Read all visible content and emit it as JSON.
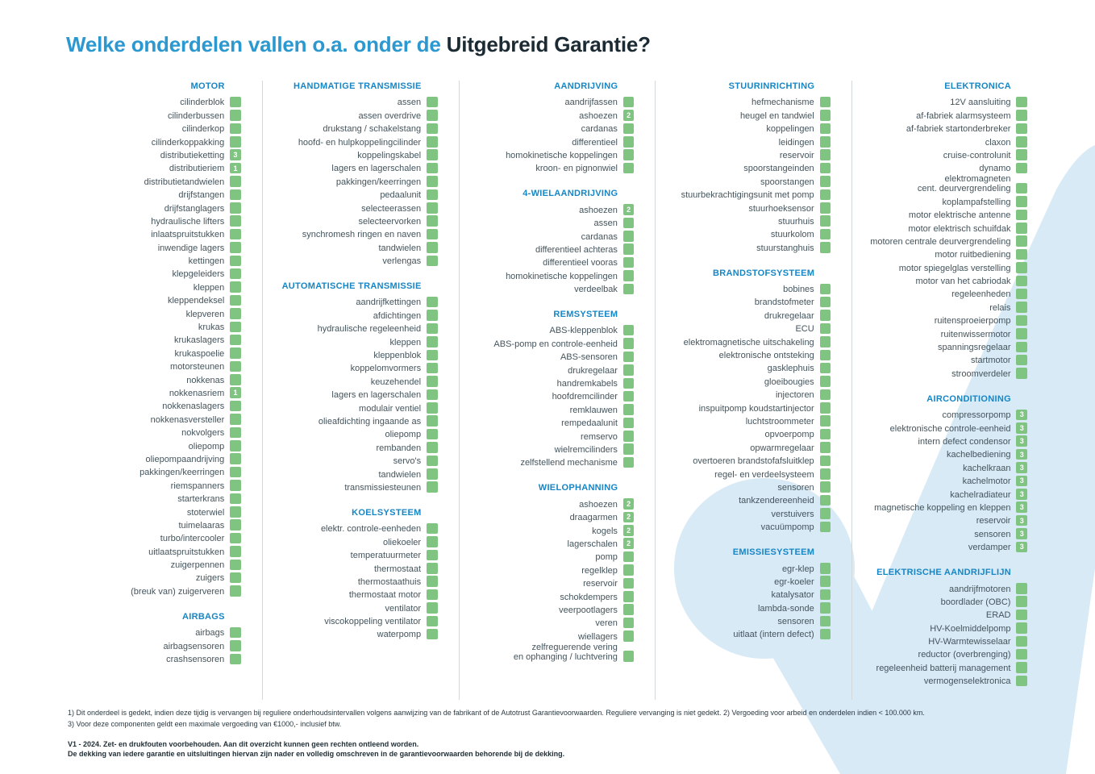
{
  "title": {
    "prefix": "Welke onderdelen vallen o.a. onder de ",
    "highlight": "Uitgebreid Garantie?"
  },
  "colors": {
    "title_blue": "#2b98cf",
    "title_dark": "#1c2b33",
    "section_header": "#1786c4",
    "item_text": "#44545c",
    "checkbox_green": "#80c481",
    "badge_text": "#ffffff",
    "watermark_blue": "#d8eaf6",
    "divider": "#d3d8da"
  },
  "columns": [
    {
      "sections": [
        {
          "title": "MOTOR",
          "items": [
            {
              "label": "cilinderblok"
            },
            {
              "label": "cilinderbussen"
            },
            {
              "label": "cilinderkop"
            },
            {
              "label": "cilinderkoppakking"
            },
            {
              "label": "distributieketting",
              "badge": "3"
            },
            {
              "label": "distributieriem",
              "badge": "1"
            },
            {
              "label": "distributietandwielen"
            },
            {
              "label": "drijfstangen"
            },
            {
              "label": "drijfstanglagers"
            },
            {
              "label": "hydraulische lifters"
            },
            {
              "label": "inlaatspruitstukken"
            },
            {
              "label": "inwendige lagers"
            },
            {
              "label": "kettingen"
            },
            {
              "label": "klepgeleiders"
            },
            {
              "label": "kleppen"
            },
            {
              "label": "kleppendeksel"
            },
            {
              "label": "klepveren"
            },
            {
              "label": "krukas"
            },
            {
              "label": "krukaslagers"
            },
            {
              "label": "krukaspoelie"
            },
            {
              "label": "motorsteunen"
            },
            {
              "label": "nokkenas"
            },
            {
              "label": "nokkenasriem",
              "badge": "1"
            },
            {
              "label": "nokkenaslagers"
            },
            {
              "label": "nokkenasversteller"
            },
            {
              "label": "nokvolgers"
            },
            {
              "label": "oliepomp"
            },
            {
              "label": "oliepompaandrijving"
            },
            {
              "label": "pakkingen/keerringen"
            },
            {
              "label": "riemspanners"
            },
            {
              "label": "starterkrans"
            },
            {
              "label": "stoterwiel"
            },
            {
              "label": "tuimelaaras"
            },
            {
              "label": "turbo/intercooler"
            },
            {
              "label": "uitlaatspruitstukken"
            },
            {
              "label": "zuigerpennen"
            },
            {
              "label": "zuigers"
            },
            {
              "label": "(breuk van) zuigerveren"
            }
          ]
        },
        {
          "title": "AIRBAGS",
          "items": [
            {
              "label": "airbags"
            },
            {
              "label": "airbagsensoren"
            },
            {
              "label": "crashsensoren"
            }
          ]
        }
      ]
    },
    {
      "sections": [
        {
          "title": "HANDMATIGE TRANSMISSIE",
          "items": [
            {
              "label": "assen"
            },
            {
              "label": "assen overdrive"
            },
            {
              "label": "drukstang / schakelstang"
            },
            {
              "label": "hoofd- en hulpkoppelingcilinder"
            },
            {
              "label": "koppelingskabel"
            },
            {
              "label": "lagers en lagerschalen"
            },
            {
              "label": "pakkingen/keerringen"
            },
            {
              "label": "pedaalunit"
            },
            {
              "label": "selecteerassen"
            },
            {
              "label": "selecteervorken"
            },
            {
              "label": "synchromesh ringen en naven"
            },
            {
              "label": "tandwielen"
            },
            {
              "label": "verlengas"
            }
          ]
        },
        {
          "title": "AUTOMATISCHE TRANSMISSIE",
          "items": [
            {
              "label": "aandrijfkettingen"
            },
            {
              "label": "afdichtingen"
            },
            {
              "label": "hydraulische regeleenheid"
            },
            {
              "label": "kleppen"
            },
            {
              "label": "kleppenblok"
            },
            {
              "label": "koppelomvormers"
            },
            {
              "label": "keuzehendel"
            },
            {
              "label": "lagers en lagerschalen"
            },
            {
              "label": "modulair ventiel"
            },
            {
              "label": "olieafdichting ingaande as"
            },
            {
              "label": "oliepomp"
            },
            {
              "label": "rembanden"
            },
            {
              "label": "servo's"
            },
            {
              "label": "tandwielen"
            },
            {
              "label": "transmissiesteunen"
            }
          ]
        },
        {
          "title": "KOELSYSTEEM",
          "items": [
            {
              "label": "elektr. controle-eenheden"
            },
            {
              "label": "oliekoeler"
            },
            {
              "label": "temperatuurmeter"
            },
            {
              "label": "thermostaat"
            },
            {
              "label": "thermostaathuis"
            },
            {
              "label": "thermostaat motor"
            },
            {
              "label": "ventilator"
            },
            {
              "label": "viscokoppeling ventilator"
            },
            {
              "label": "waterpomp"
            }
          ]
        }
      ]
    },
    {
      "sections": [
        {
          "title": "AANDRIJVING",
          "items": [
            {
              "label": "aandrijfassen"
            },
            {
              "label": "ashoezen",
              "badge": "2"
            },
            {
              "label": "cardanas"
            },
            {
              "label": "differentieel"
            },
            {
              "label": "homokinetische koppelingen"
            },
            {
              "label": "kroon- en pignonwiel"
            }
          ]
        },
        {
          "title": "4-WIELAANDRIJVING",
          "items": [
            {
              "label": "ashoezen",
              "badge": "2"
            },
            {
              "label": "assen"
            },
            {
              "label": "cardanas"
            },
            {
              "label": "differentieel achteras"
            },
            {
              "label": "differentieel vooras"
            },
            {
              "label": "homokinetische koppelingen"
            },
            {
              "label": "verdeelbak"
            }
          ]
        },
        {
          "title": "REMSYSTEEM",
          "items": [
            {
              "label": "ABS-kleppenblok"
            },
            {
              "label": "ABS-pomp en controle-eenheid"
            },
            {
              "label": "ABS-sensoren"
            },
            {
              "label": "drukregelaar"
            },
            {
              "label": "handremkabels"
            },
            {
              "label": "hoofdremcilinder"
            },
            {
              "label": "remklauwen"
            },
            {
              "label": "rempedaalunit"
            },
            {
              "label": "remservo"
            },
            {
              "label": "wielremcilinders"
            },
            {
              "label": "zelfstellend mechanisme"
            }
          ]
        },
        {
          "title": "WIELOPHANNING",
          "items": [
            {
              "label": "ashoezen",
              "badge": "2"
            },
            {
              "label": "draagarmen",
              "badge": "2"
            },
            {
              "label": "kogels",
              "badge": "2"
            },
            {
              "label": "lagerschalen",
              "badge": "2"
            },
            {
              "label": "pomp"
            },
            {
              "label": "regelklep"
            },
            {
              "label": "reservoir"
            },
            {
              "label": "schokdempers"
            },
            {
              "label": "veerpootlagers"
            },
            {
              "label": "veren"
            },
            {
              "label": "wiellagers"
            },
            {
              "label": "zelfreguerende vering\nen ophanging / luchtvering"
            }
          ]
        }
      ]
    },
    {
      "sections": [
        {
          "title": "STUURINRICHTING",
          "items": [
            {
              "label": "hefmechanisme"
            },
            {
              "label": "heugel en tandwiel"
            },
            {
              "label": "koppelingen"
            },
            {
              "label": "leidingen"
            },
            {
              "label": "reservoir"
            },
            {
              "label": "spoorstangeinden"
            },
            {
              "label": "spoorstangen"
            },
            {
              "label": "stuurbekrachtigingsunit met pomp"
            },
            {
              "label": "stuurhoeksensor"
            },
            {
              "label": "stuurhuis"
            },
            {
              "label": "stuurkolom"
            },
            {
              "label": "stuurstanghuis"
            }
          ]
        },
        {
          "title": "BRANDSTOFSYSTEEM",
          "items": [
            {
              "label": "bobines"
            },
            {
              "label": "brandstofmeter"
            },
            {
              "label": "drukregelaar"
            },
            {
              "label": "ECU"
            },
            {
              "label": "elektromagnetische uitschakeling"
            },
            {
              "label": "elektronische ontsteking"
            },
            {
              "label": "gasklephuis"
            },
            {
              "label": "gloeibougies"
            },
            {
              "label": "injectoren"
            },
            {
              "label": "inspuitpomp koudstartinjector"
            },
            {
              "label": "luchtstroommeter"
            },
            {
              "label": "opvoerpomp"
            },
            {
              "label": "opwarmregelaar"
            },
            {
              "label": "overtoeren brandstofafsluitklep"
            },
            {
              "label": "regel- en verdeelsysteem"
            },
            {
              "label": "sensoren"
            },
            {
              "label": "tankzendereenheid"
            },
            {
              "label": "verstuivers"
            },
            {
              "label": "vacuümpomp"
            }
          ]
        },
        {
          "title": "EMISSIESYSTEEM",
          "items": [
            {
              "label": "egr-klep"
            },
            {
              "label": "egr-koeler"
            },
            {
              "label": "katalysator"
            },
            {
              "label": "lambda-sonde"
            },
            {
              "label": "sensoren"
            },
            {
              "label": "uitlaat (intern defect)"
            }
          ]
        }
      ]
    },
    {
      "sections": [
        {
          "title": "ELEKTRONICA",
          "items": [
            {
              "label": "12V aansluiting"
            },
            {
              "label": "af-fabriek alarmsysteem"
            },
            {
              "label": "af-fabriek startonderbreker"
            },
            {
              "label": "claxon"
            },
            {
              "label": "cruise-controlunit"
            },
            {
              "label": "dynamo"
            },
            {
              "label": "elektromagneten\ncent. deurvergrendeling"
            },
            {
              "label": "koplampafstelling"
            },
            {
              "label": "motor elektrische antenne"
            },
            {
              "label": "motor elektrisch schuifdak"
            },
            {
              "label": "motoren centrale deurvergrendeling"
            },
            {
              "label": "motor ruitbediening"
            },
            {
              "label": "motor spiegelglas verstelling"
            },
            {
              "label": "motor van het cabriodak"
            },
            {
              "label": "regeleenheden"
            },
            {
              "label": "relais"
            },
            {
              "label": "ruitensproeierpomp"
            },
            {
              "label": "ruitenwissermotor"
            },
            {
              "label": "spanningsregelaar"
            },
            {
              "label": "startmotor"
            },
            {
              "label": "stroomverdeler"
            }
          ]
        },
        {
          "title": "AIRCONDITIONING",
          "items": [
            {
              "label": "compressorpomp",
              "badge": "3"
            },
            {
              "label": "elektronische controle-eenheid",
              "badge": "3"
            },
            {
              "label": "intern defect condensor",
              "badge": "3"
            },
            {
              "label": "kachelbediening",
              "badge": "3"
            },
            {
              "label": "kachelkraan",
              "badge": "3"
            },
            {
              "label": "kachelmotor",
              "badge": "3"
            },
            {
              "label": "kachelradiateur",
              "badge": "3"
            },
            {
              "label": "magnetische koppeling en kleppen",
              "badge": "3"
            },
            {
              "label": "reservoir",
              "badge": "3"
            },
            {
              "label": "sensoren",
              "badge": "3"
            },
            {
              "label": "verdamper",
              "badge": "3"
            }
          ]
        },
        {
          "title": "ELEKTRISCHE AANDRIJFLIJN",
          "items": [
            {
              "label": "aandrijfmotoren"
            },
            {
              "label": "boordlader (OBC)"
            },
            {
              "label": "ERAD"
            },
            {
              "label": "HV-Koelmiddelpomp"
            },
            {
              "label": "HV-Warmtewisselaar"
            },
            {
              "label": "reductor (overbrenging)"
            },
            {
              "label": "regeleenheid batterij management"
            },
            {
              "label": "vermogenselektronica"
            }
          ]
        }
      ]
    }
  ],
  "footnotes": [
    "1) Dit onderdeel is gedekt, indien deze tijdig is vervangen bij reguliere onderhoudsintervallen volgens aanwijzing van de fabrikant of de Autotrust Garantievoorwaarden. Reguliere vervanging is niet gedekt. 2) Vergoeding voor arbeid en onderdelen indien < 100.000 km.",
    "3) Voor deze componenten geldt een maximale vergoeding van €1000,- inclusief btw."
  ],
  "disclaimer": [
    "V1 - 2024. Zet- en drukfouten voorbehouden. Aan dit overzicht kunnen geen rechten ontleend worden.",
    "De dekking van iedere garantie en uitsluitingen hiervan zijn nader en volledig omschreven in de garantievoorwaarden behorende bij de dekking."
  ]
}
